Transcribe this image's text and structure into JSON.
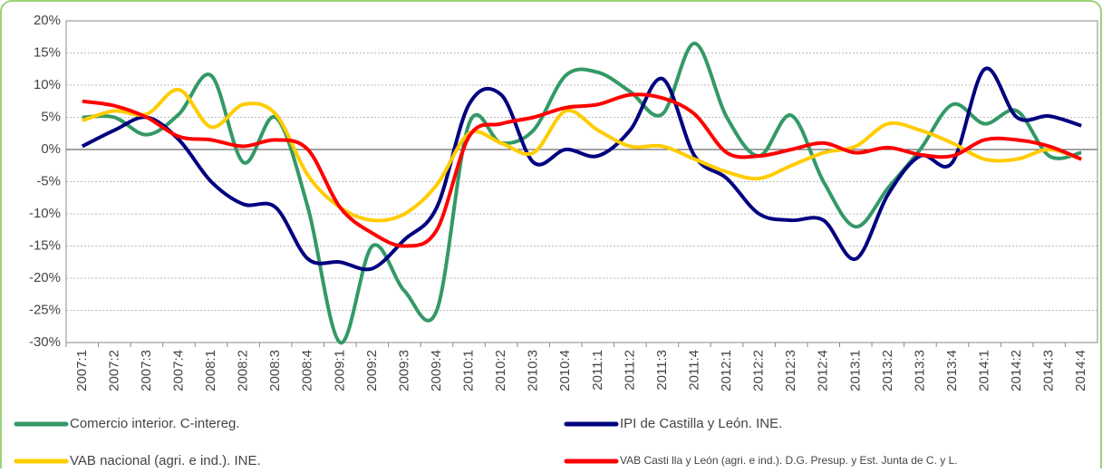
{
  "chart_data": {
    "type": "line",
    "categories": [
      "2007:1",
      "2007:2",
      "2007:3",
      "2007:4",
      "2008:1",
      "2008:2",
      "2008:3",
      "2008:4",
      "2009:1",
      "2009:2",
      "2009:3",
      "2009:4",
      "2010:1",
      "2010:2",
      "2010:3",
      "2010:4",
      "2011:1",
      "2011:2",
      "2011:3",
      "2011:4",
      "2012:1",
      "2012:2",
      "2012:3",
      "2012:4",
      "2013:1",
      "2013:2",
      "2013:3",
      "2013:4",
      "2014:1",
      "2014:2",
      "2014:3",
      "2014:4"
    ],
    "series": [
      {
        "name": "Comercio interior. C-intereg.",
        "color": "#339966",
        "values": [
          5,
          5,
          2.3,
          5.5,
          11.5,
          -2,
          5,
          -9,
          -30,
          -15,
          -22,
          -25,
          4,
          1,
          3,
          11.5,
          12,
          9,
          5.5,
          16.5,
          5,
          -1,
          5.3,
          -5,
          -12,
          -6,
          0,
          7,
          4,
          6,
          -1,
          -0.5
        ]
      },
      {
        "name": "IPI de Castilla y León. INE.",
        "color": "#000080",
        "values": [
          0.5,
          3,
          5,
          1.5,
          -5,
          -8.5,
          -9,
          -17,
          -17.5,
          -18.5,
          -14,
          -9,
          7,
          8.5,
          -2,
          0,
          -1,
          3,
          11,
          -1,
          -4.5,
          -10,
          -11,
          -11,
          -17,
          -7,
          -1,
          -2,
          12.5,
          5,
          5.2,
          3.7
        ]
      },
      {
        "name": "VAB nacional (agri. e ind.). INE.",
        "color": "#ffcc00",
        "values": [
          4.5,
          6,
          5.5,
          9.3,
          3.5,
          7,
          5.5,
          -4,
          -9,
          -11,
          -10,
          -5.5,
          2.5,
          1,
          -0.5,
          6,
          3,
          0.5,
          0.5,
          -1.5,
          -3.5,
          -4.5,
          -2.5,
          -0.5,
          0.5,
          4,
          3,
          1,
          -1.5,
          -1.5,
          0,
          -1.5
        ]
      },
      {
        "name": "VAB Casti lla y León (agri. e ind.). D.G. Presup. y Est. Junta de C. y L.",
        "color": "#ff0000",
        "values": [
          7.5,
          6.8,
          5,
          2,
          1.5,
          0.5,
          1.5,
          0,
          -9,
          -13,
          -15,
          -12.5,
          2,
          4,
          5,
          6.5,
          7,
          8.5,
          8,
          5.5,
          -0.5,
          -1,
          0,
          1,
          -0.5,
          0.3,
          -0.8,
          -1,
          1.5,
          1.5,
          0.5,
          -1.5
        ]
      }
    ],
    "ylim": [
      -30,
      20
    ],
    "yticks": [
      {
        "value": -30,
        "label": "-30%"
      },
      {
        "value": -25,
        "label": "-25%"
      },
      {
        "value": -20,
        "label": "-20%"
      },
      {
        "value": -15,
        "label": "-15%"
      },
      {
        "value": -10,
        "label": "-10%"
      },
      {
        "value": -5,
        "label": "-5%"
      },
      {
        "value": 0,
        "label": "0%"
      },
      {
        "value": 5,
        "label": "5%"
      },
      {
        "value": 10,
        "label": "10%"
      },
      {
        "value": 15,
        "label": "15%"
      },
      {
        "value": 20,
        "label": "20%"
      }
    ],
    "grid": true
  }
}
